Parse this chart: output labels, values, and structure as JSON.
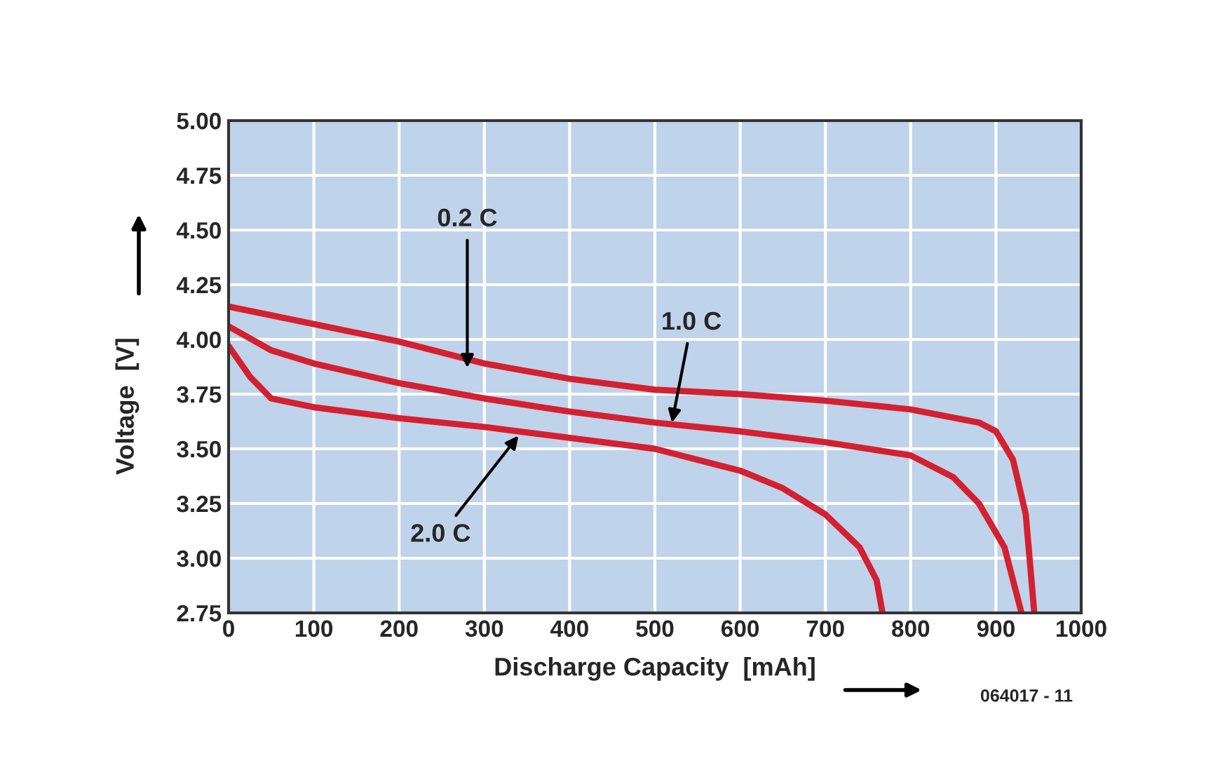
{
  "chart_data": {
    "type": "line",
    "xlabel": "Discharge Capacity  [mAh]",
    "ylabel": "Voltage  [V]",
    "xlim": [
      0,
      1000
    ],
    "xticks": [
      0,
      100,
      200,
      300,
      400,
      500,
      600,
      700,
      800,
      900,
      1000
    ],
    "ylim": [
      2.75,
      5.0
    ],
    "yticks": [
      {
        "value": 2.75,
        "label": "2.75"
      },
      {
        "value": 3.0,
        "label": "3.00"
      },
      {
        "value": 3.25,
        "label": "3.25"
      },
      {
        "value": 3.5,
        "label": "3.50"
      },
      {
        "value": 3.75,
        "label": "3.75"
      },
      {
        "value": 4.0,
        "label": "4.00"
      },
      {
        "value": 4.25,
        "label": "4.25"
      },
      {
        "value": 4.5,
        "label": "4.50"
      },
      {
        "value": 4.75,
        "label": "4.75"
      },
      {
        "value": 5.0,
        "label": "5.00"
      }
    ],
    "grid": true,
    "legend": false,
    "marker": "none",
    "line_style": "solid",
    "series": [
      {
        "color": "#d42030",
        "x": [
          0,
          100,
          200,
          300,
          400,
          500,
          600,
          700,
          800,
          880,
          900,
          920,
          935,
          945
        ],
        "values": [
          4.15,
          4.07,
          3.99,
          3.89,
          3.82,
          3.77,
          3.75,
          3.72,
          3.68,
          3.62,
          3.58,
          3.45,
          3.2,
          2.75
        ]
      },
      {
        "color": "#d42030",
        "x": [
          0,
          50,
          100,
          200,
          300,
          400,
          500,
          600,
          700,
          800,
          850,
          880,
          910,
          930
        ],
        "values": [
          4.06,
          3.95,
          3.89,
          3.8,
          3.73,
          3.67,
          3.62,
          3.58,
          3.53,
          3.47,
          3.37,
          3.25,
          3.05,
          2.75
        ]
      },
      {
        "color": "#d42030",
        "x": [
          0,
          25,
          50,
          100,
          200,
          300,
          400,
          500,
          600,
          650,
          700,
          740,
          760,
          767
        ],
        "values": [
          3.97,
          3.83,
          3.73,
          3.69,
          3.64,
          3.6,
          3.55,
          3.5,
          3.4,
          3.32,
          3.2,
          3.05,
          2.9,
          2.75
        ]
      }
    ],
    "annotations": [
      {
        "text": "0.2 C",
        "x": 280,
        "y": 3.87
      },
      {
        "text": "1.0 C",
        "x": 520,
        "y": 3.62
      },
      {
        "text": "2.0 C",
        "x": 340,
        "y": 3.56
      },
      "064017 - 11"
    ]
  }
}
